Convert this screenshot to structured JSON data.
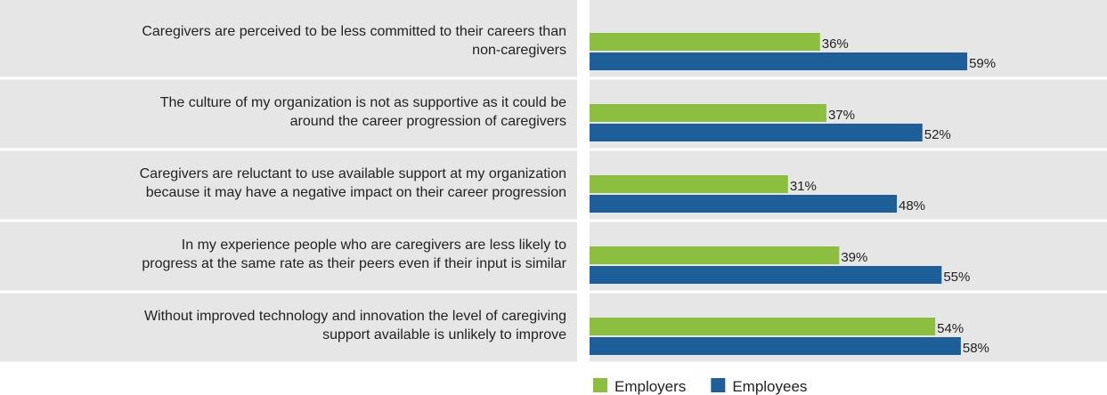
{
  "chart_data": {
    "type": "bar",
    "orientation": "horizontal",
    "categories": [
      "Caregivers are perceived to be less committed to their careers than\nnon-caregivers",
      "The culture of my organization is not as supportive as it could be\naround the career progression of caregivers",
      "Caregivers are reluctant to use available support at my organization\nbecause it may have a negative impact on their career progression",
      "In my experience people who are caregivers are less likely to\nprogress at the same rate as their peers even if their input is similar",
      "Without improved technology and innovation the level of caregiving\nsupport available is unlikely to improve"
    ],
    "series": [
      {
        "name": "Employers",
        "color": "#8cbf3f",
        "values": [
          36,
          37,
          31,
          39,
          54
        ],
        "value_labels": [
          "36%",
          "37%",
          "31%",
          "39%",
          "54%"
        ]
      },
      {
        "name": "Employees",
        "color": "#1f5f99",
        "values": [
          59,
          52,
          48,
          55,
          58
        ],
        "value_labels": [
          "59%",
          "52%",
          "48%",
          "55%",
          "58%"
        ]
      }
    ],
    "xlim": [
      0,
      80
    ],
    "legend": "bottom"
  }
}
